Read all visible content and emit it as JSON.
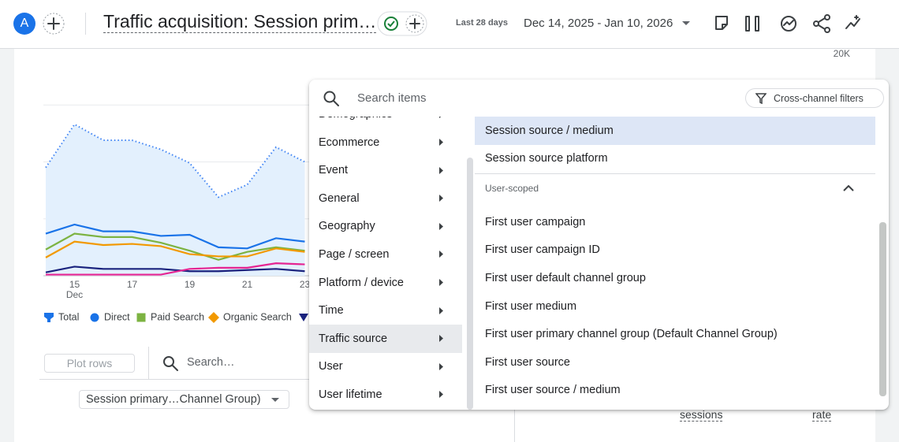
{
  "header": {
    "avatar": "A",
    "title": "Traffic acquisition: Session prim…",
    "date_preset": "Last 28 days",
    "date_range": "Dec 14, 2025 - Jan 10, 2026"
  },
  "chart": {
    "type": "line",
    "categories": [
      null,
      "15",
      null,
      "17",
      null,
      "19",
      null,
      "21",
      null,
      "23"
    ],
    "x_group_label": "Dec",
    "series": [
      {
        "name": "Total",
        "color": "#4285f4",
        "values": [
          9500,
          13300,
          11900,
          11900,
          11100,
          9900,
          6900,
          8000,
          11300,
          10000
        ]
      },
      {
        "name": "Direct",
        "color": "#1a73e8",
        "values": [
          3700,
          4500,
          3900,
          3900,
          3500,
          3600,
          2500,
          2400,
          3300,
          3000
        ]
      },
      {
        "name": "Paid Search",
        "color": "#7cb342",
        "values": [
          2300,
          3700,
          3400,
          3400,
          2900,
          2200,
          1400,
          2100,
          2500,
          2200
        ]
      },
      {
        "name": "Organic Search",
        "color": "#f29900",
        "values": [
          1600,
          3000,
          2700,
          2800,
          2600,
          1900,
          1700,
          1700,
          2400,
          2100
        ]
      },
      {
        "color": "#1a237e",
        "values": [
          300,
          800,
          600,
          600,
          600,
          400,
          400,
          500,
          600,
          400
        ]
      },
      {
        "color": "#e52592",
        "values": [
          100,
          100,
          100,
          100,
          100,
          600,
          700,
          700,
          1100,
          1000
        ]
      }
    ],
    "ylim": [
      0,
      20000
    ],
    "grid_lines": [
      0,
      5000,
      10000,
      15000
    ],
    "yticks": [
      {
        "value": 20000,
        "label": "20K"
      }
    ]
  },
  "table_controls": {
    "plot_rows": "Plot rows",
    "search_placeholder": "Search…",
    "dimension": "Session primary…Channel Group)",
    "columns": [
      "sessions",
      "rate"
    ]
  },
  "dimension_picker": {
    "search_placeholder": "Search items",
    "filter_button": "Cross-channel filters",
    "categories": [
      "Demographics",
      "Ecommerce",
      "Event",
      "General",
      "Geography",
      "Page / screen",
      "Platform / device",
      "Time",
      "Traffic source",
      "User",
      "User lifetime"
    ],
    "selected_category": 8,
    "items": [
      "Session source / medium",
      "Session source platform"
    ],
    "highlighted_item": 0,
    "scoped_section": "User-scoped",
    "scoped_items": [
      "First user campaign",
      "First user campaign ID",
      "First user default channel group",
      "First user medium",
      "First user primary channel group (Default Channel Group)",
      "First user source",
      "First user source / medium"
    ]
  }
}
